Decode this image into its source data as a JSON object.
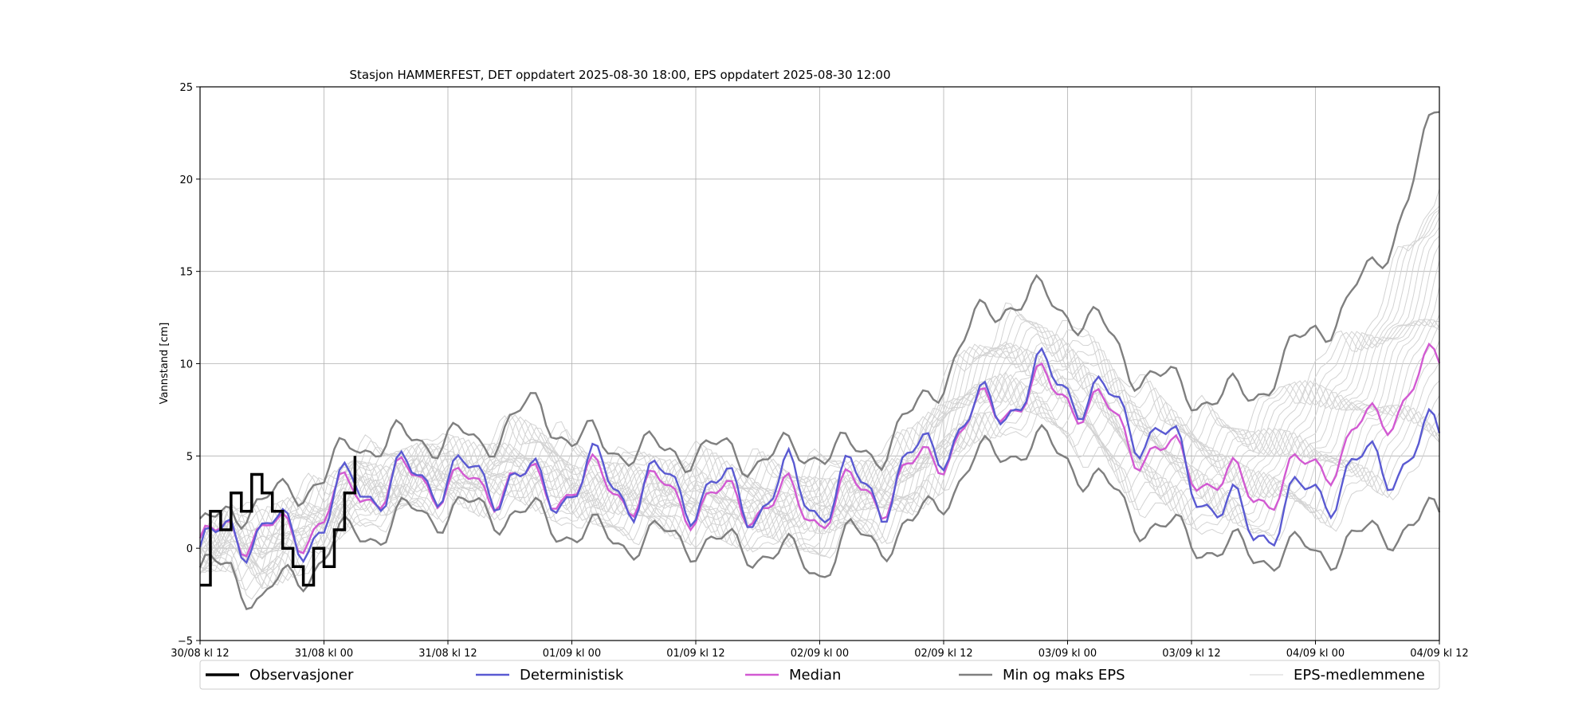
{
  "chart_data": {
    "type": "line",
    "title": "Stasjon HAMMERFEST, DET oppdatert 2025-08-30 18:00, EPS oppdatert 2025-08-30 12:00",
    "xlabel": "",
    "ylabel": "Vannstand [cm]",
    "ylim": [
      -5,
      25
    ],
    "xlim_hours": [
      0,
      120
    ],
    "x_tick_labels": [
      "30/08 kl 12",
      "31/08 kl 00",
      "31/08 kl 12",
      "01/09 kl 00",
      "01/09 kl 12",
      "02/09 kl 00",
      "02/09 kl 12",
      "03/09 kl 00",
      "03/09 kl 12",
      "04/09 kl 00",
      "04/09 kl 12"
    ],
    "y_ticks": [
      -5,
      0,
      5,
      10,
      15,
      20,
      25
    ],
    "grid": true,
    "legend_position": "bottom",
    "legend": [
      "Observasjoner",
      "Deterministisk",
      "Median",
      "Min og maks EPS",
      "EPS-medlemmene"
    ],
    "colors": {
      "Observasjoner": "#000000",
      "Deterministisk": "#5a5ad2",
      "Median": "#d25ad2",
      "Min og maks EPS": "#7f7f7f",
      "EPS-medlemmene": "#d3d3d3"
    },
    "series": [
      {
        "name": "Observasjoner",
        "x": [
          0,
          1,
          2,
          3,
          4,
          5,
          6,
          7,
          8,
          9,
          10,
          11,
          12,
          13,
          14,
          15
        ],
        "y": [
          -2,
          2,
          1,
          3,
          2,
          4,
          3,
          2,
          0,
          -1,
          -2,
          0,
          -1,
          1,
          3,
          5
        ]
      },
      {
        "name": "Deterministisk",
        "x": [
          0,
          3,
          6,
          9,
          12,
          15,
          18,
          21,
          24,
          27,
          30,
          33,
          36,
          39,
          42,
          45,
          48,
          51,
          54,
          57,
          60,
          63,
          66,
          69,
          72,
          75,
          78,
          81,
          84,
          87,
          90,
          93,
          96,
          99,
          102,
          105,
          108,
          111,
          114,
          117,
          120
        ],
        "y": [
          -1,
          1.5,
          0.5,
          1,
          1,
          4,
          3,
          4,
          4,
          3.5,
          4,
          3,
          3.5,
          4,
          3,
          3.5,
          3,
          3,
          2.5,
          3.5,
          2.5,
          3.5,
          3,
          4.5,
          6,
          7,
          8,
          9,
          9,
          8,
          7,
          6,
          4,
          2,
          1,
          2,
          3,
          4,
          4.5,
          5,
          6
        ]
      },
      {
        "name": "Median",
        "x": [
          0,
          3,
          6,
          9,
          12,
          15,
          18,
          21,
          24,
          27,
          30,
          33,
          36,
          39,
          42,
          45,
          48,
          51,
          54,
          57,
          60,
          63,
          66,
          69,
          72,
          75,
          78,
          81,
          84,
          87,
          90,
          93,
          96,
          99,
          102,
          105,
          108,
          111,
          114,
          117,
          120
        ],
        "y": [
          -0.5,
          1.5,
          0.5,
          1,
          1.5,
          3.5,
          3,
          4,
          3.5,
          3,
          4,
          3,
          3.5,
          3.5,
          3,
          3,
          2.5,
          2.5,
          2.5,
          2.5,
          2,
          3,
          3,
          4,
          5.5,
          7,
          8,
          8.5,
          8.5,
          7.5,
          6,
          5,
          4.5,
          3.5,
          3,
          3.5,
          4.5,
          5.5,
          7,
          8.5,
          10
        ]
      },
      {
        "name": "Min EPS",
        "x": [
          0,
          3,
          6,
          9,
          12,
          15,
          18,
          21,
          24,
          27,
          30,
          33,
          36,
          39,
          42,
          45,
          48,
          51,
          54,
          57,
          60,
          63,
          66,
          69,
          72,
          75,
          78,
          81,
          84,
          87,
          90,
          93,
          96,
          99,
          102,
          105,
          108,
          111,
          114,
          117,
          120
        ],
        "y": [
          -1.5,
          -1,
          -3,
          -1.5,
          -0.5,
          1,
          1,
          2,
          2,
          2,
          2,
          1.5,
          1,
          0.5,
          0.5,
          0.5,
          0.5,
          0,
          0,
          -0.5,
          -1,
          0.5,
          0.5,
          1,
          3,
          4.5,
          5.5,
          5.5,
          5,
          3.5,
          2,
          1,
          0.5,
          0,
          -0.5,
          0,
          -0.5,
          0.5,
          0.5,
          1.5,
          1.5
        ]
      },
      {
        "name": "Max EPS",
        "x": [
          0,
          3,
          6,
          9,
          12,
          15,
          18,
          21,
          24,
          27,
          30,
          33,
          36,
          39,
          42,
          45,
          48,
          51,
          54,
          57,
          60,
          63,
          66,
          69,
          72,
          75,
          78,
          81,
          84,
          87,
          90,
          93,
          96,
          99,
          102,
          105,
          108,
          111,
          114,
          117,
          120
        ],
        "y": [
          0.5,
          2.5,
          2,
          3.5,
          3.5,
          6,
          5.5,
          6,
          6,
          5.5,
          7,
          7.5,
          6,
          5.5,
          5.5,
          5,
          5.5,
          5,
          5,
          5,
          5.5,
          5,
          5.5,
          7,
          9.5,
          12,
          13.5,
          13.5,
          13,
          12,
          10,
          9,
          8.5,
          8,
          8.5,
          10,
          12,
          13,
          15.5,
          19,
          24
        ]
      }
    ]
  }
}
